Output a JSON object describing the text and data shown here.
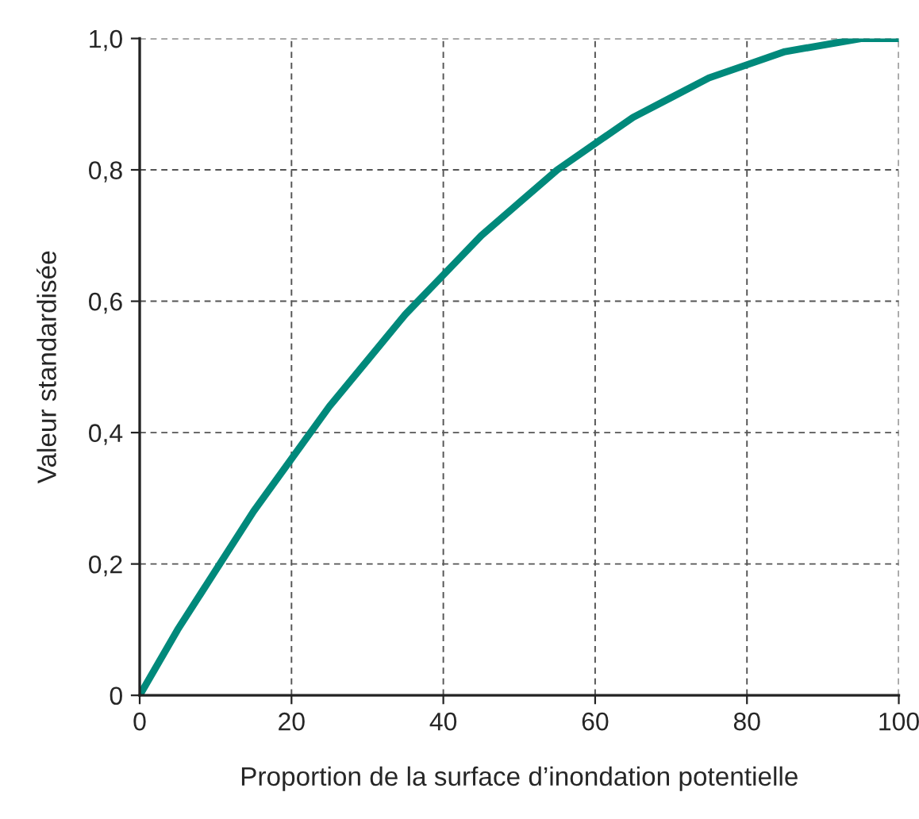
{
  "chart_data": {
    "type": "line",
    "xlabel": "Proportion de la surface d’inondation potentielle",
    "ylabel": "Valeur standardisée",
    "x": [
      0,
      5,
      10,
      15,
      20,
      25,
      30,
      35,
      40,
      45,
      50,
      55,
      60,
      65,
      70,
      75,
      80,
      85,
      90,
      95,
      100
    ],
    "series": [
      {
        "color": "#00897b",
        "values": [
          0,
          0.1,
          0.19,
          0.28,
          0.36,
          0.44,
          0.51,
          0.58,
          0.64,
          0.7,
          0.75,
          0.8,
          0.84,
          0.88,
          0.91,
          0.94,
          0.96,
          0.98,
          0.99,
          1.0,
          1.0
        ]
      }
    ],
    "xlim": [
      0,
      100
    ],
    "xticks": [
      0,
      20,
      40,
      60,
      80,
      100
    ],
    "ylim": [
      0,
      1
    ],
    "yticks": [
      0,
      {
        "value": 0.2,
        "label": "0,2"
      },
      {
        "value": 0.4,
        "label": "0,4"
      },
      {
        "value": 0.6,
        "label": "0,6"
      },
      {
        "value": 0.8,
        "label": "0,8"
      },
      {
        "value": 1,
        "label": "1,0"
      }
    ],
    "grid": true,
    "line_style": "solid",
    "marker": "none"
  }
}
